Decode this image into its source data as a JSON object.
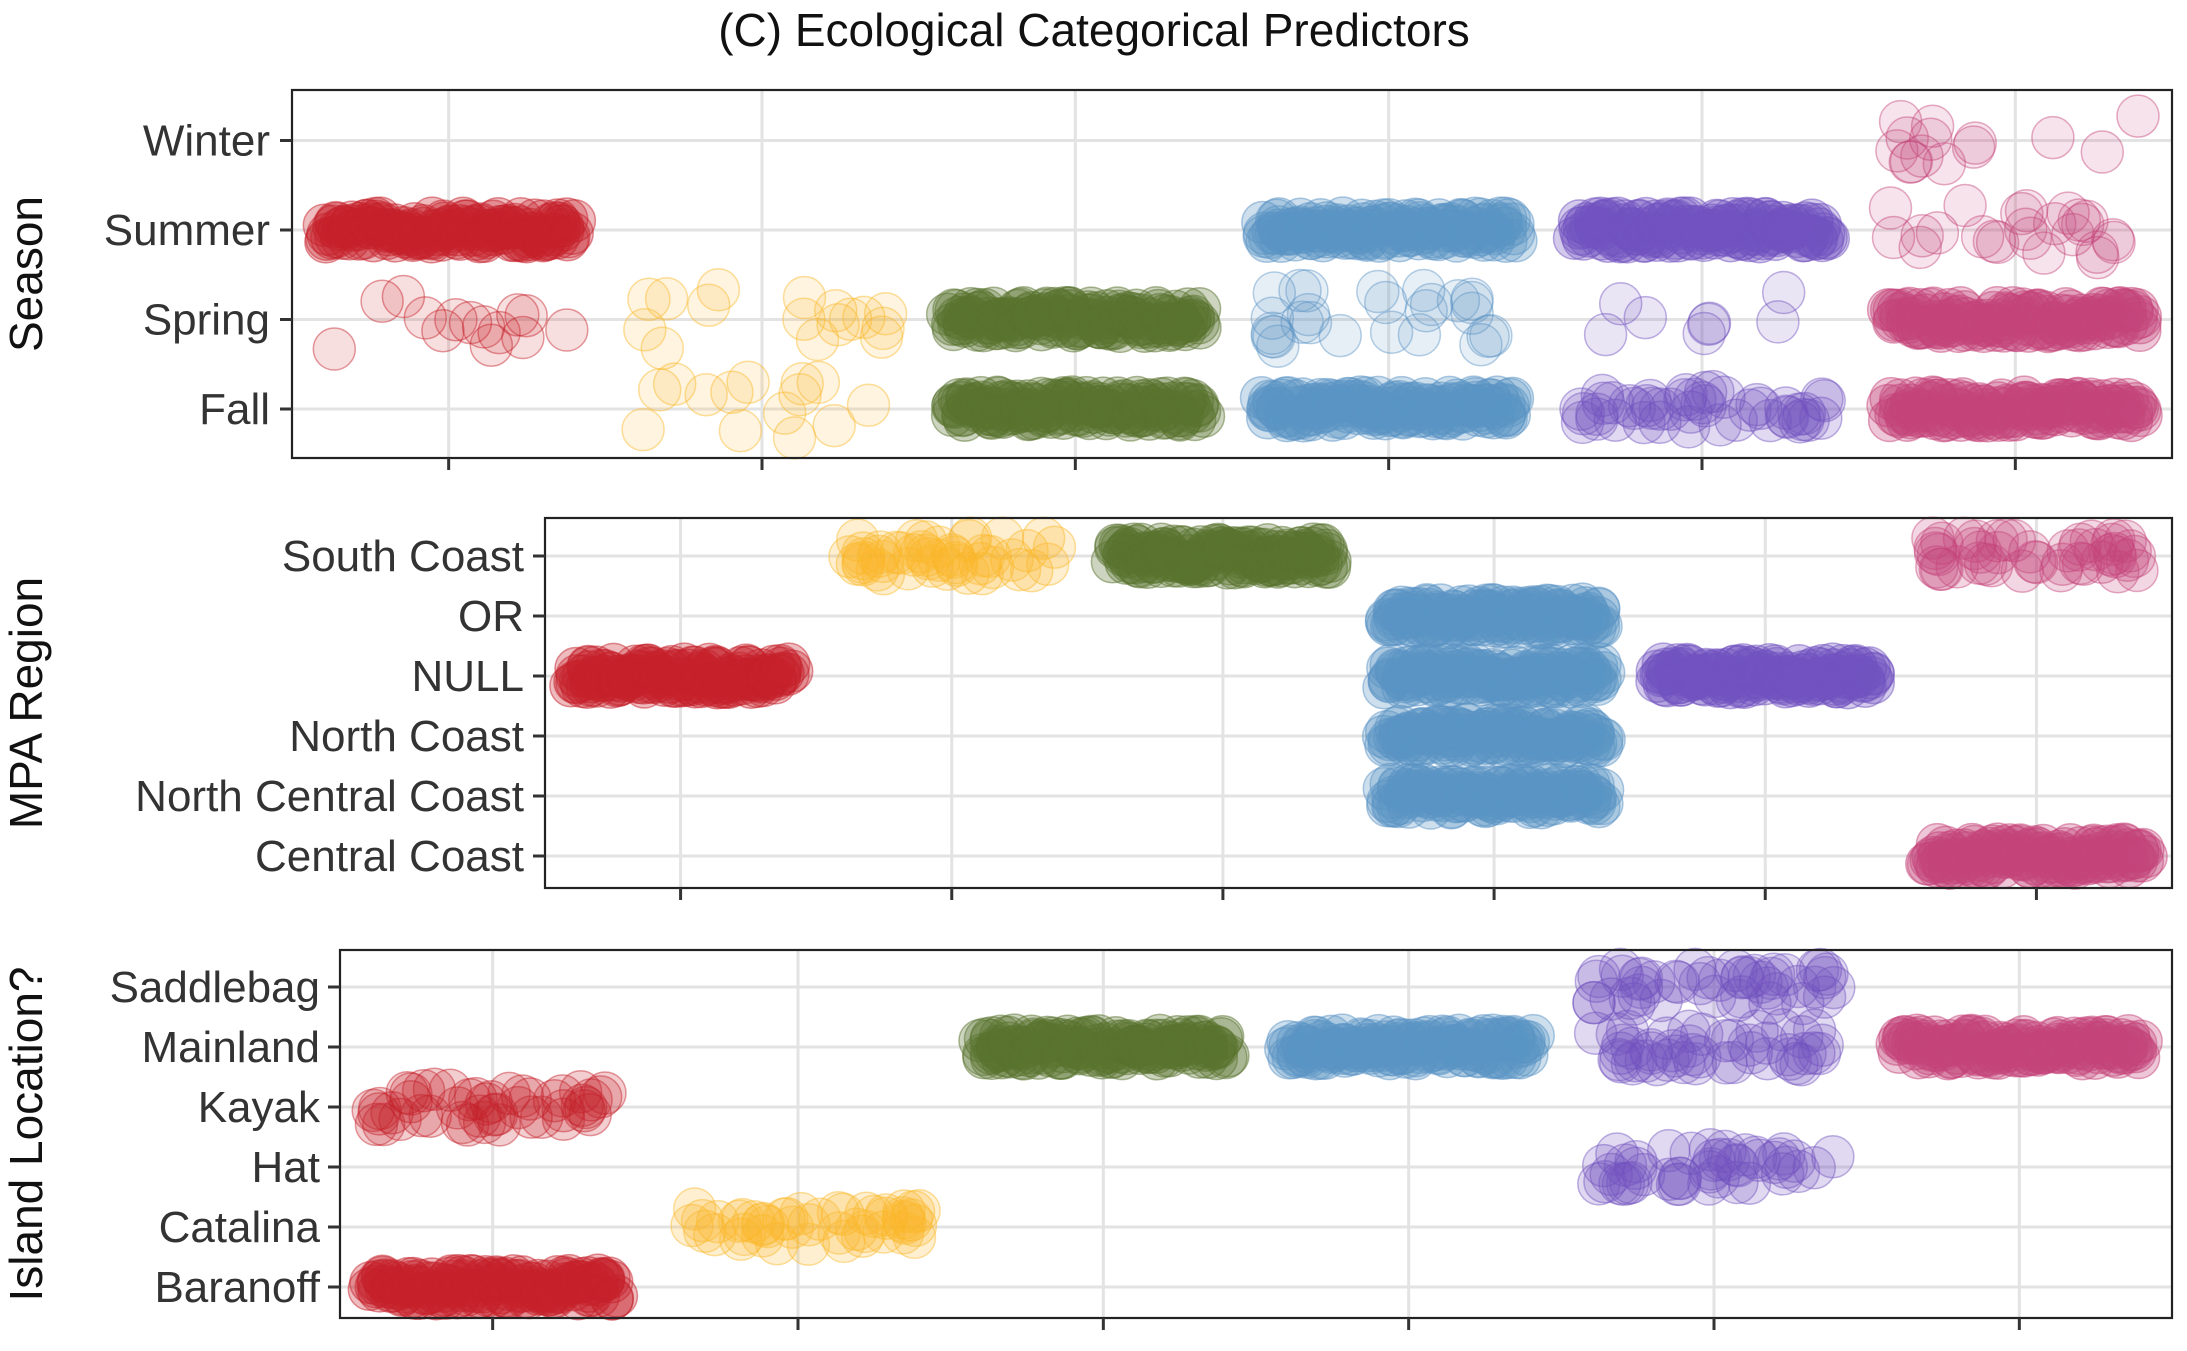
{
  "chart_data": {
    "title": "(C) Ecological Categorical Predictors",
    "type": "scatter",
    "groups": [
      {
        "name": "",
        "color": "#C6222B"
      },
      {
        "name": "",
        "color": "#FBB829"
      },
      {
        "name": "",
        "color": "#5A7430"
      },
      {
        "name": "",
        "color": "#5B94C5"
      },
      {
        "name": "",
        "color": "#7152BF"
      },
      {
        "name": "",
        "color": "#C54479"
      }
    ],
    "panels": [
      {
        "ylabel": "Season",
        "categories": [
          "Fall",
          "Spring",
          "Summer",
          "Winter"
        ],
        "cells": [
          {
            "group": 0,
            "category": "Summer",
            "style": "band"
          },
          {
            "group": 0,
            "category": "Spring",
            "style": "sparse",
            "n": 14
          },
          {
            "group": 1,
            "category": "Spring",
            "style": "sparse",
            "n": 16
          },
          {
            "group": 1,
            "category": "Fall",
            "style": "sparse",
            "n": 14
          },
          {
            "group": 2,
            "category": "Spring",
            "style": "band"
          },
          {
            "group": 2,
            "category": "Fall",
            "style": "band"
          },
          {
            "group": 3,
            "category": "Summer",
            "style": "band"
          },
          {
            "group": 3,
            "category": "Spring",
            "style": "sparse",
            "n": 26
          },
          {
            "group": 3,
            "category": "Fall",
            "style": "band"
          },
          {
            "group": 4,
            "category": "Summer",
            "style": "band"
          },
          {
            "group": 4,
            "category": "Spring",
            "style": "sparse",
            "n": 8
          },
          {
            "group": 4,
            "category": "Fall",
            "style": "cluster"
          },
          {
            "group": 5,
            "category": "Winter",
            "style": "sparse",
            "n": 14
          },
          {
            "group": 5,
            "category": "Summer",
            "style": "sparse",
            "n": 24
          },
          {
            "group": 5,
            "category": "Spring",
            "style": "band"
          },
          {
            "group": 5,
            "category": "Fall",
            "style": "band"
          }
        ]
      },
      {
        "ylabel": "MPA Region",
        "categories": [
          "Central Coast",
          "North Central Coast",
          "North Coast",
          "NULL",
          "OR",
          "South Coast"
        ],
        "cells": [
          {
            "group": 0,
            "category": "NULL",
            "style": "band"
          },
          {
            "group": 1,
            "category": "South Coast",
            "style": "cluster"
          },
          {
            "group": 2,
            "category": "South Coast",
            "style": "band"
          },
          {
            "group": 3,
            "category": "OR",
            "style": "band"
          },
          {
            "group": 3,
            "category": "NULL",
            "style": "band"
          },
          {
            "group": 3,
            "category": "North Coast",
            "style": "band"
          },
          {
            "group": 3,
            "category": "North Central Coast",
            "style": "band"
          },
          {
            "group": 4,
            "category": "NULL",
            "style": "band"
          },
          {
            "group": 5,
            "category": "South Coast",
            "style": "cluster"
          },
          {
            "group": 5,
            "category": "Central Coast",
            "style": "band"
          }
        ]
      },
      {
        "ylabel": "Island Location?",
        "categories": [
          "Baranoff",
          "Catalina",
          "Hat",
          "Kayak",
          "Mainland",
          "Saddlebag"
        ],
        "cells": [
          {
            "group": 0,
            "category": "Kayak",
            "style": "cluster"
          },
          {
            "group": 0,
            "category": "Baranoff",
            "style": "band"
          },
          {
            "group": 1,
            "category": "Catalina",
            "style": "cluster"
          },
          {
            "group": 2,
            "category": "Mainland",
            "style": "band"
          },
          {
            "group": 3,
            "category": "Mainland",
            "style": "band"
          },
          {
            "group": 4,
            "category": "Saddlebag",
            "style": "cluster"
          },
          {
            "group": 4,
            "category": "Mainland",
            "style": "cluster"
          },
          {
            "group": 4,
            "category": "Hat",
            "style": "cluster"
          },
          {
            "group": 5,
            "category": "Mainland",
            "style": "band"
          }
        ]
      }
    ]
  }
}
